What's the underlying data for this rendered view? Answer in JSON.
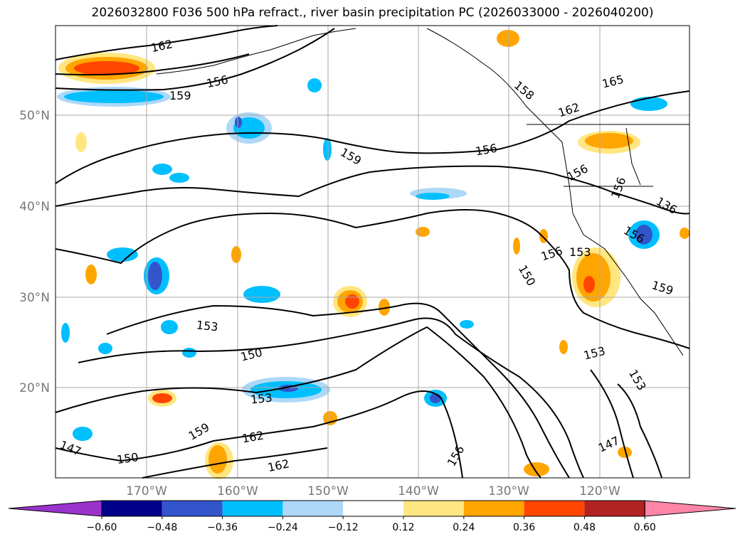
{
  "title": "2026032800 F036 500 hPa refract., river basin precipitation PC (2026033000 - 2026040200)",
  "lat_labels": [
    "50°N",
    "40°N",
    "30°N",
    "20°N"
  ],
  "lon_labels": [
    "170°W",
    "160°W",
    "150°W",
    "140°W",
    "130°W",
    "120°W"
  ],
  "contour_labels": [
    "162",
    "156",
    "159",
    "165",
    "158",
    "162",
    "156",
    "159",
    "156",
    "156",
    "136",
    "156",
    "156",
    "153",
    "150",
    "159",
    "153",
    "150",
    "153",
    "153",
    "159",
    "162",
    "147",
    "150",
    "162",
    "156",
    "147",
    "153"
  ],
  "colorbar": {
    "ticks": [
      "−0.60",
      "−0.48",
      "−0.36",
      "−0.24",
      "−0.12",
      "0.12",
      "0.24",
      "0.36",
      "0.48",
      "0.60"
    ],
    "colors": [
      "#9933cc",
      "#00008b",
      "#3355cc",
      "#00bfff",
      "#add8f7",
      "#ffffff",
      "#ffe680",
      "#ffa500",
      "#ff4500",
      "#b22222",
      "#ff85a8"
    ]
  }
}
